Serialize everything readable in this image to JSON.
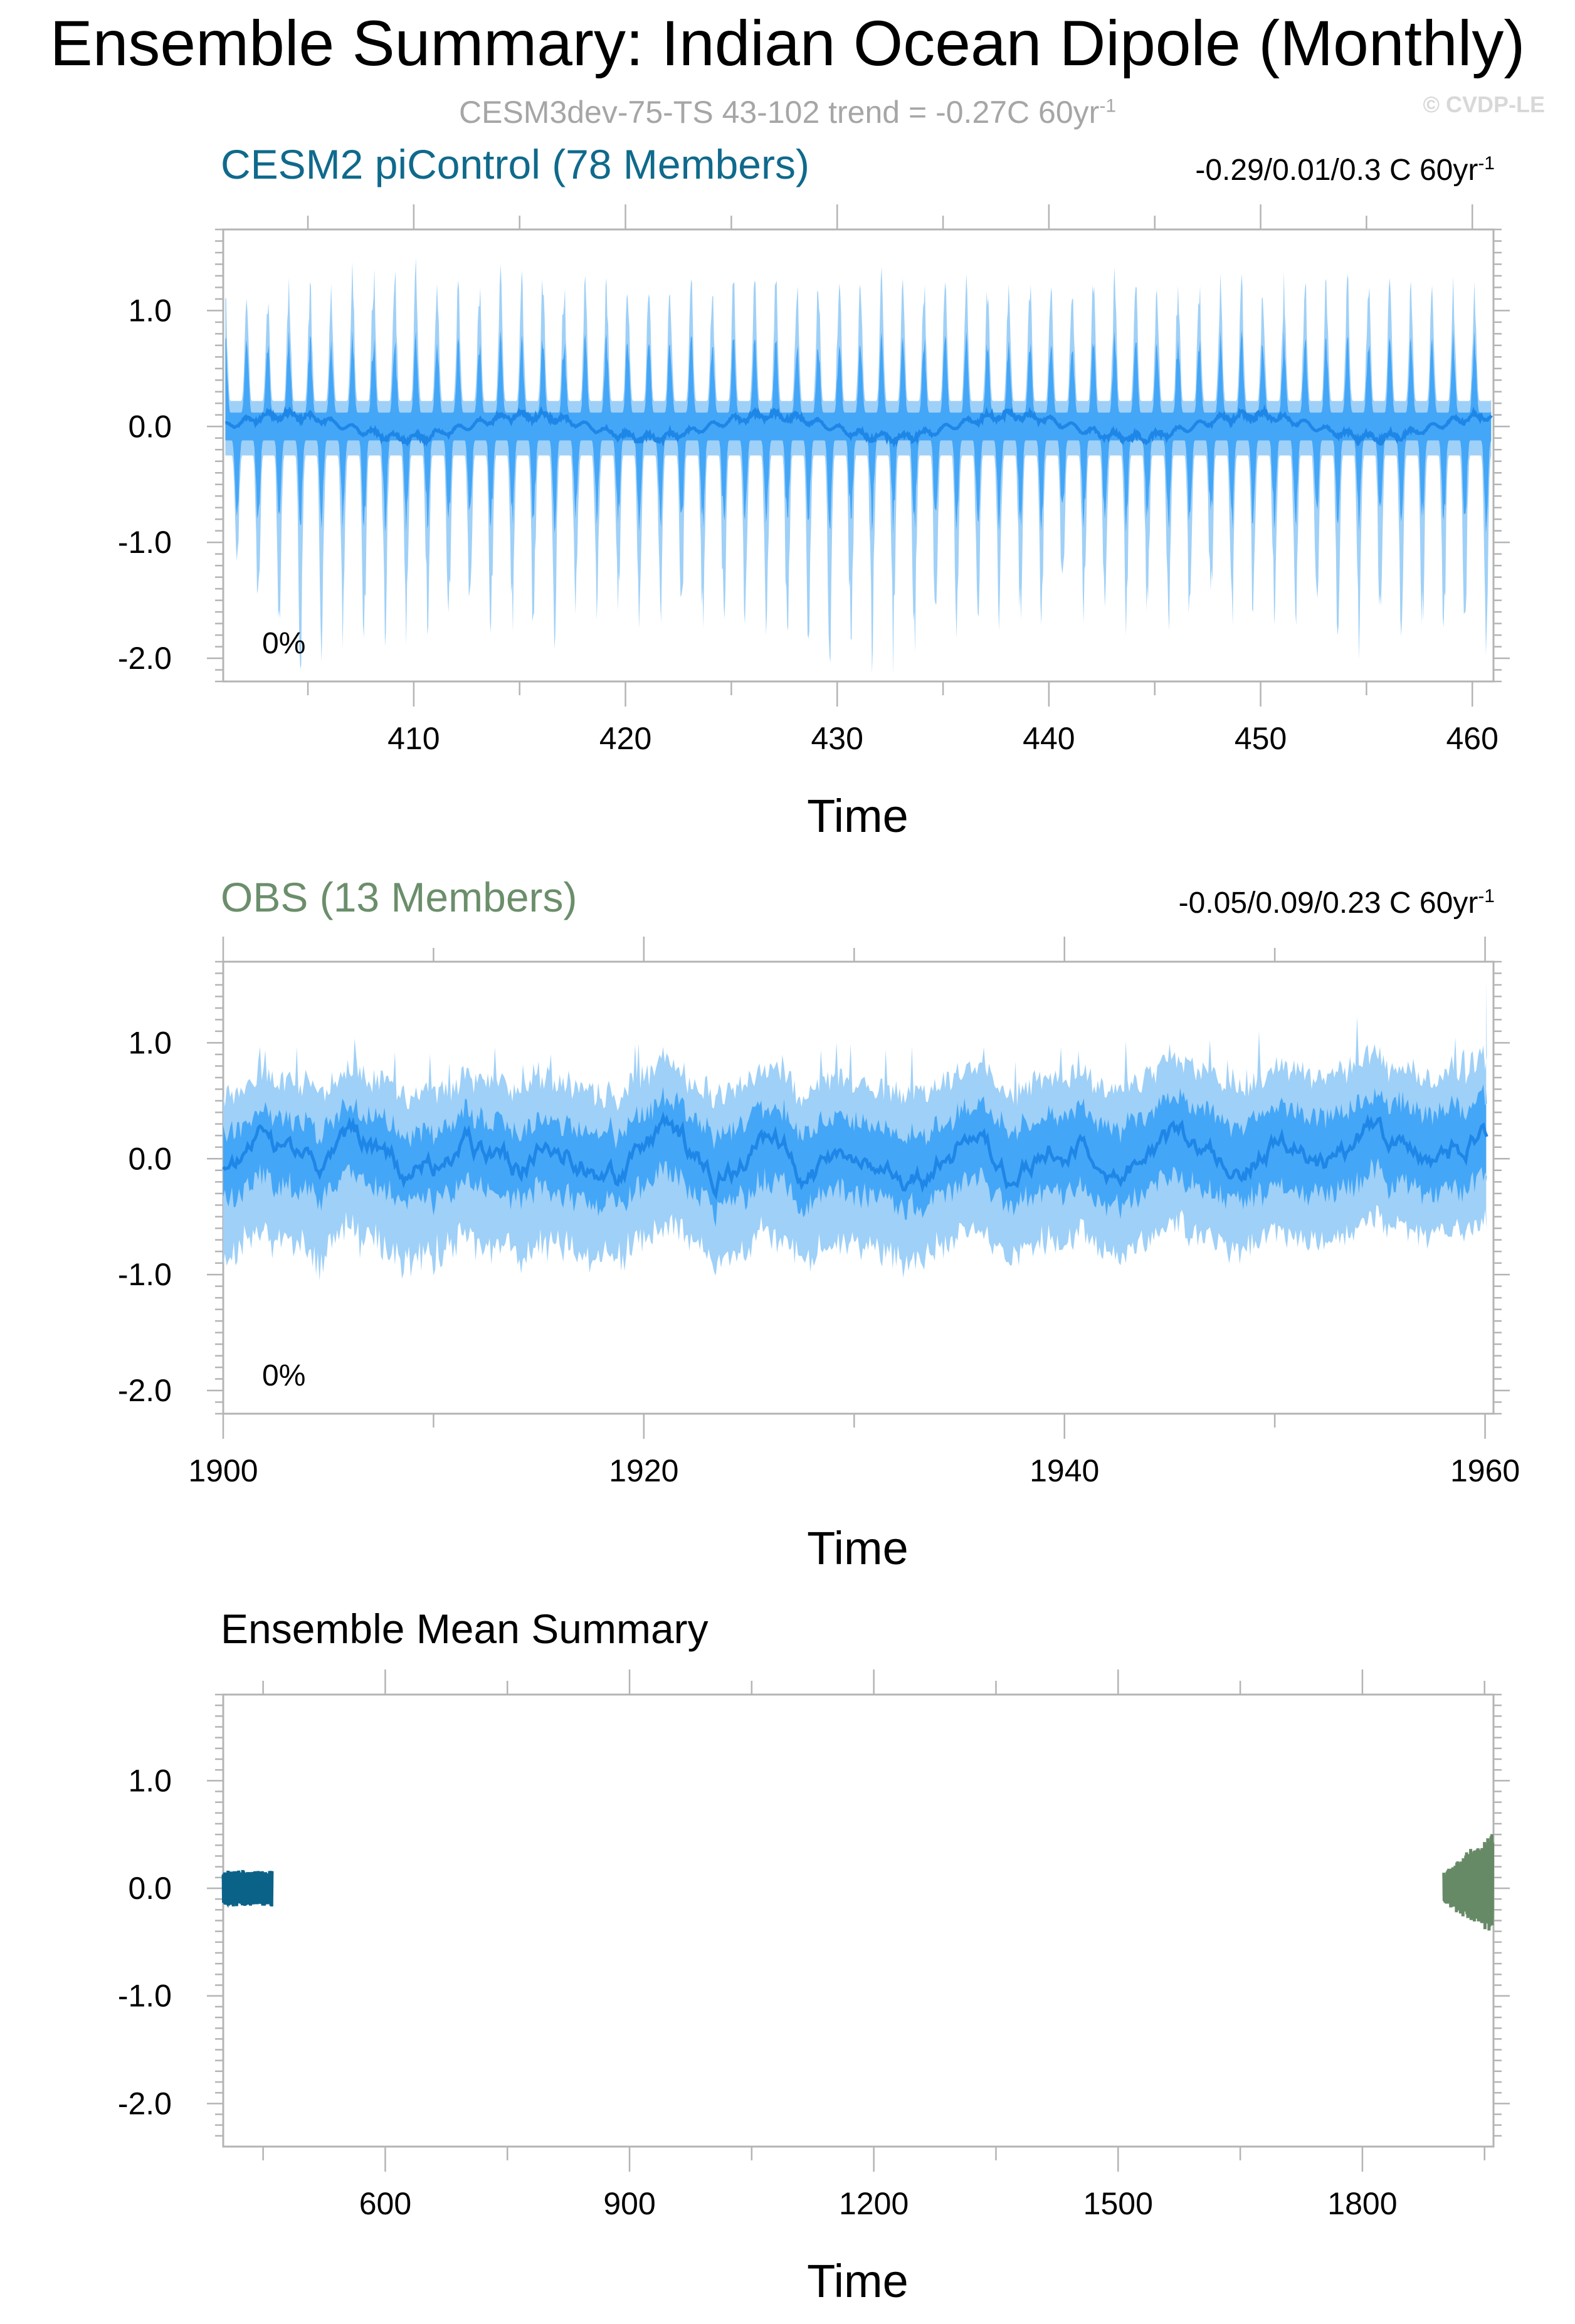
{
  "title": "Ensemble Summary: Indian Ocean Dipole (Monthly)",
  "subtitle": {
    "text": "CESM3dev-75-TS 43-102 trend = -0.27C 60yr",
    "superscript": "-1"
  },
  "watermark": "© CVDP-LE",
  "colors": {
    "band_outer": "#9fd0f7",
    "band_inner": "#44a6f7",
    "ens_mean": "#1e86e6",
    "picontrol_title": "#0f6a8c",
    "obs_title": "#6b8e6b",
    "picontrol_mean": "#0b6288",
    "obs_mean": "#678a66",
    "frame": "#b4b4b4"
  },
  "chart_data": [
    {
      "type": "area",
      "title": "CESM2 piControl (78 Members)",
      "stats": {
        "text": "-0.29/0.01/0.3 C 60yr",
        "superscript": "-1"
      },
      "annotation": "0%",
      "xlabel": "Time",
      "ylabel": "",
      "xlim": [
        401,
        461
      ],
      "ylim": [
        -2.2,
        1.7
      ],
      "xticks": [
        410,
        420,
        430,
        440,
        450,
        460
      ],
      "xtick_labels": [
        "410",
        "420",
        "430",
        "440",
        "450",
        "460"
      ],
      "yticks": [
        1.0,
        0.0,
        -1.0,
        -2.0
      ],
      "ytick_labels": [
        "1.0",
        "0.0",
        "-1.0",
        "-2.0"
      ],
      "series": [
        {
          "role": "10-90 percentile band",
          "peaks_year_value": [
            [
              401.5,
              0.9
            ],
            [
              405,
              1.0
            ],
            [
              409,
              1.2
            ],
            [
              412,
              1.05
            ],
            [
              415,
              1.1
            ],
            [
              420,
              1.0
            ],
            [
              425,
              1.05
            ],
            [
              430,
              1.15
            ],
            [
              435,
              1.0
            ],
            [
              440,
              1.1
            ],
            [
              445,
              1.05
            ],
            [
              450,
              1.0
            ],
            [
              455,
              1.1
            ],
            [
              460,
              0.95
            ]
          ],
          "troughs_year_value": [
            [
              401.5,
              -1.0
            ],
            [
              404.5,
              -1.9
            ],
            [
              407,
              -1.6
            ],
            [
              412,
              -1.5
            ],
            [
              416,
              -1.6
            ],
            [
              420,
              -1.4
            ],
            [
              424,
              -1.5
            ],
            [
              428,
              -1.7
            ],
            [
              432,
              -1.8
            ],
            [
              436,
              -1.5
            ],
            [
              440,
              -1.4
            ],
            [
              445,
              -1.5
            ],
            [
              450,
              -1.4
            ],
            [
              455,
              -1.7
            ],
            [
              460,
              -1.6
            ]
          ]
        },
        {
          "role": "25-75 percentile band",
          "peak_amplitude": 0.65,
          "trough_amplitude": -0.75
        },
        {
          "role": "ensemble median",
          "amplitude": 0.12
        }
      ]
    },
    {
      "type": "area",
      "title": "OBS (13 Members)",
      "stats": {
        "text": "-0.05/0.09/0.23 C 60yr",
        "superscript": "-1"
      },
      "annotation": "0%",
      "xlabel": "Time",
      "ylabel": "",
      "xlim": [
        1900,
        1960.4
      ],
      "ylim": [
        -2.2,
        1.7
      ],
      "xticks": [
        1900,
        1920,
        1940,
        1960
      ],
      "xtick_labels": [
        "1900",
        "1920",
        "1940",
        "1960"
      ],
      "yticks": [
        1.0,
        0.0,
        -1.0,
        -2.0
      ],
      "ytick_labels": [
        "1.0",
        "0.0",
        "-1.0",
        "-2.0"
      ],
      "series": [
        {
          "role": "10-90 percentile band",
          "upper_range": [
            0.45,
            1.0
          ],
          "lower_range": [
            -1.15,
            -0.55
          ]
        },
        {
          "role": "25-75 percentile band",
          "upper_range": [
            0.15,
            0.6
          ],
          "lower_range": [
            -0.6,
            -0.25
          ]
        },
        {
          "role": "ensemble median",
          "range": [
            -0.3,
            0.5
          ]
        }
      ]
    },
    {
      "type": "line",
      "title": "Ensemble Mean Summary",
      "xlabel": "Time",
      "ylabel": "",
      "xlim": [
        401,
        1961
      ],
      "ylim": [
        -2.4,
        1.8
      ],
      "xticks": [
        600,
        900,
        1200,
        1500,
        1800
      ],
      "xtick_labels": [
        "600",
        "900",
        "1200",
        "1500",
        "1800"
      ],
      "yticks": [
        1.0,
        0.0,
        -1.0,
        -2.0
      ],
      "ytick_labels": [
        "1.0",
        "0.0",
        "-1.0",
        "-2.0"
      ],
      "series": [
        {
          "role": "CESM2 piControl ensemble mean",
          "x_range": [
            401,
            461
          ],
          "y_range": [
            -0.2,
            0.2
          ]
        },
        {
          "role": "OBS ensemble mean",
          "x_range": [
            1900,
            1960
          ],
          "y_range": [
            -0.25,
            0.55
          ]
        }
      ]
    }
  ]
}
